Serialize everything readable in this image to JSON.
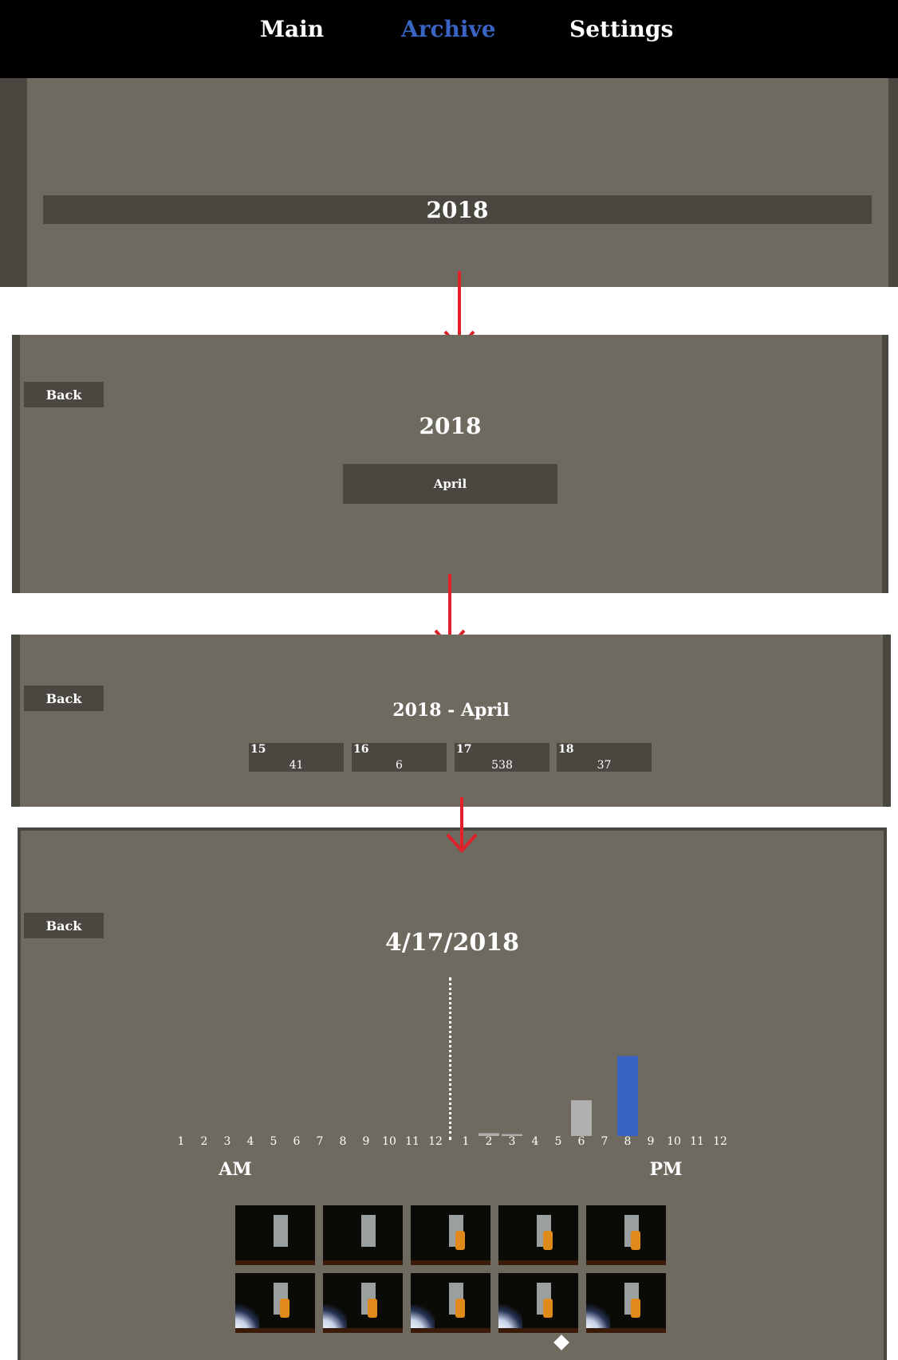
{
  "nav": {
    "items": [
      "Main",
      "Archive",
      "Settings"
    ],
    "active": "Archive",
    "active_color": "#3a64c4"
  },
  "colors": {
    "panel": "#6e6a60",
    "dark": "#4a4640",
    "arrow": "#e0202a",
    "bar_blue": "#3a64c4",
    "bar_gray": "#b0b0b0"
  },
  "step1": {
    "year_bar": "2018"
  },
  "step2": {
    "back_label": "Back",
    "year_title": "2018",
    "month_button": "April"
  },
  "step3": {
    "back_label": "Back",
    "title": "2018 - April",
    "days": [
      {
        "day": "15",
        "count": "41"
      },
      {
        "day": "16",
        "count": "6"
      },
      {
        "day": "17",
        "count": "538"
      },
      {
        "day": "18",
        "count": "37"
      }
    ]
  },
  "step4": {
    "back_label": "Back",
    "date_title": "4/17/2018",
    "am_label": "AM",
    "pm_label": "PM",
    "am_ticks": [
      "1",
      "2",
      "3",
      "4",
      "5",
      "6",
      "7",
      "8",
      "9",
      "10",
      "11",
      "12"
    ],
    "pm_ticks": [
      "1",
      "2",
      "3",
      "4",
      "5",
      "6",
      "7",
      "8",
      "9",
      "10",
      "11",
      "12"
    ],
    "thumbnail_icon": "camera-frame",
    "pager_icon": "diamond-icon"
  },
  "chart_data": {
    "type": "bar",
    "categories": [
      "PM 2",
      "PM 3",
      "PM 6",
      "PM 8"
    ],
    "values": [
      3,
      2,
      38,
      85
    ],
    "colors": [
      "#b0b0b0",
      "#b0b0b0",
      "#b0b0b0",
      "#3a64c4"
    ],
    "ylim": [
      0,
      100
    ],
    "xlabel": "",
    "ylabel": "",
    "title": ""
  }
}
